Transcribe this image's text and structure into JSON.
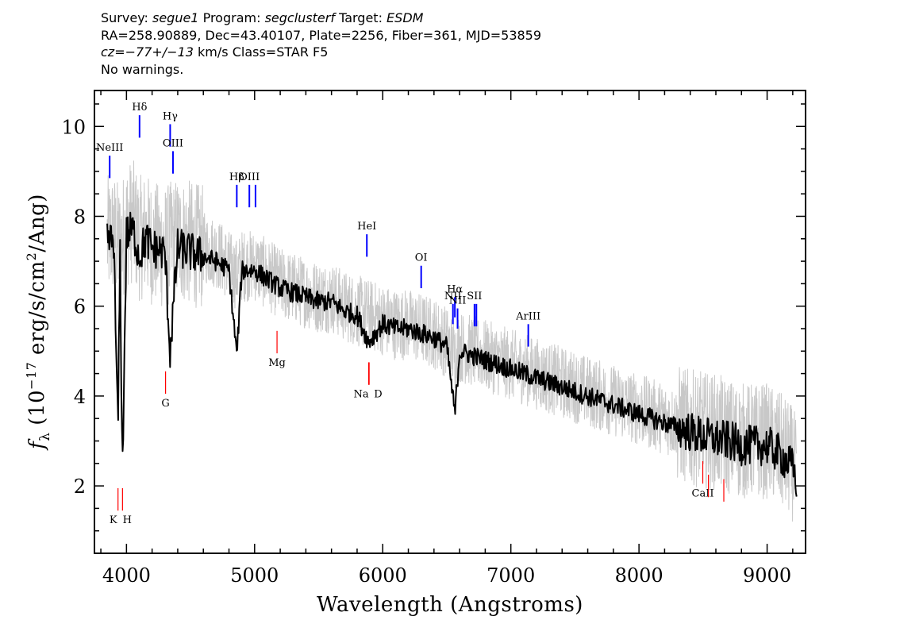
{
  "header": {
    "survey_label": "Survey:",
    "survey": "segue1",
    "program_label": "Program:",
    "program": "segclusterf",
    "target_label": "Target:",
    "target": "ESDM",
    "line2": "RA=258.90889, Dec=43.40107, Plate=2256, Fiber=361, MJD=53859",
    "cz_value": "cz=−77+/−13",
    "cz_rest": "km/s Class=STAR F5",
    "line4": "No warnings."
  },
  "chart_data": {
    "type": "line",
    "xlabel": "Wavelength (Angstroms)",
    "ylabel": "fλ (10⁻¹⁷ erg/s/cm²/Ang)",
    "xlim": [
      3750,
      9300
    ],
    "ylim": [
      0.5,
      10.8
    ],
    "x_ticks": [
      4000,
      5000,
      6000,
      7000,
      8000,
      9000
    ],
    "y_ticks": [
      2,
      4,
      6,
      8,
      10
    ],
    "series": [
      {
        "color": "#c8c8c8",
        "role": "noisy flux",
        "x": [
          3850,
          3900,
          3950,
          4000,
          4050,
          4100,
          4150,
          4200,
          4300,
          4400,
          4500,
          4600,
          4700,
          4800,
          4861,
          4900,
          5000,
          5100,
          5200,
          5300,
          5400,
          5500,
          5600,
          5700,
          5800,
          5900,
          6000,
          6100,
          6200,
          6300,
          6400,
          6500,
          6563,
          6600,
          6700,
          6800,
          6900,
          7000,
          7100,
          7200,
          7300,
          7400,
          7500,
          7600,
          7700,
          7800,
          7900,
          8000,
          8100,
          8200,
          8300,
          8400,
          8500,
          8600,
          8700,
          8800,
          8900,
          9000,
          9100,
          9200,
          9230
        ],
        "y": [
          7.5,
          7.6,
          7.3,
          7.8,
          7.9,
          7.5,
          7.6,
          7.4,
          7.3,
          7.5,
          7.4,
          7.3,
          7.2,
          6.9,
          6.7,
          6.9,
          6.9,
          6.7,
          6.5,
          6.4,
          6.3,
          6.2,
          6.2,
          6.0,
          5.9,
          5.8,
          5.7,
          5.6,
          5.6,
          5.5,
          5.4,
          5.2,
          4.9,
          5.1,
          5.0,
          4.9,
          4.8,
          4.7,
          4.6,
          4.5,
          4.4,
          4.3,
          4.2,
          4.1,
          4.0,
          3.9,
          3.8,
          3.7,
          3.6,
          3.5,
          3.4,
          3.3,
          3.25,
          3.2,
          3.1,
          3.0,
          3.0,
          3.0,
          2.8,
          2.5,
          2.2
        ]
      },
      {
        "color": "#000000",
        "role": "smoothed flux",
        "x": [
          3850,
          3900,
          3933,
          3950,
          3968,
          4000,
          4050,
          4101,
          4150,
          4200,
          4300,
          4340,
          4400,
          4500,
          4600,
          4700,
          4800,
          4861,
          4900,
          5000,
          5100,
          5200,
          5300,
          5400,
          5500,
          5600,
          5700,
          5800,
          5890,
          6000,
          6100,
          6200,
          6300,
          6400,
          6500,
          6563,
          6600,
          6700,
          6800,
          6900,
          7000,
          7100,
          7200,
          7300,
          7400,
          7500,
          7600,
          7700,
          7800,
          7900,
          8000,
          8100,
          8200,
          8300,
          8400,
          8500,
          8600,
          8700,
          8800,
          8900,
          9000,
          9100,
          9200,
          9230
        ],
        "y": [
          7.4,
          7.5,
          3.2,
          7.2,
          2.2,
          7.6,
          7.7,
          7.1,
          7.5,
          7.3,
          7.2,
          5.0,
          7.3,
          7.2,
          7.1,
          7.0,
          6.8,
          4.9,
          6.8,
          6.8,
          6.6,
          6.4,
          6.3,
          6.2,
          6.1,
          6.1,
          5.9,
          5.8,
          5.2,
          5.6,
          5.5,
          5.5,
          5.4,
          5.3,
          5.1,
          3.6,
          5.0,
          4.9,
          4.8,
          4.7,
          4.6,
          4.5,
          4.4,
          4.3,
          4.2,
          4.1,
          4.0,
          3.9,
          3.8,
          3.7,
          3.6,
          3.5,
          3.4,
          3.3,
          3.2,
          3.1,
          3.05,
          3.0,
          2.9,
          2.9,
          2.9,
          2.7,
          2.4,
          2.1
        ]
      }
    ],
    "emission_lines": [
      {
        "label": "NeIII",
        "x": 3869,
        "y_top": 9.35,
        "y_bottom": 8.85
      },
      {
        "label": "Hδ",
        "x": 4102,
        "y_top": 10.25,
        "y_bottom": 9.75
      },
      {
        "label": "Hγ",
        "x": 4341,
        "y_top": 10.05,
        "y_bottom": 9.55
      },
      {
        "label": "OIII",
        "x": 4363,
        "y_top": 9.45,
        "y_bottom": 8.95
      },
      {
        "label": "Hβ",
        "x": 4861,
        "y_top": 8.7,
        "y_bottom": 8.2
      },
      {
        "label": "OIII",
        "x": 4959,
        "y_top": 8.7,
        "y_bottom": 8.2
      },
      {
        "label": "",
        "x": 5007,
        "y_top": 8.7,
        "y_bottom": 8.2
      },
      {
        "label": "HeI",
        "x": 5876,
        "y_top": 7.6,
        "y_bottom": 7.1
      },
      {
        "label": "OI",
        "x": 6300,
        "y_top": 6.9,
        "y_bottom": 6.4
      },
      {
        "label": "NII",
        "x": 6548,
        "y_top": 6.05,
        "y_bottom": 5.6
      },
      {
        "label": "Hα",
        "x": 6563,
        "y_top": 6.2,
        "y_bottom": 5.75
      },
      {
        "label": "NII",
        "x": 6584,
        "y_top": 5.95,
        "y_bottom": 5.5
      },
      {
        "label": "SII",
        "x": 6716,
        "y_top": 6.05,
        "y_bottom": 5.55
      },
      {
        "label": "",
        "x": 6731,
        "y_top": 6.05,
        "y_bottom": 5.55
      },
      {
        "label": "ArIII",
        "x": 7136,
        "y_top": 5.6,
        "y_bottom": 5.1
      }
    ],
    "absorption_lines": [
      {
        "label": "K",
        "x": 3934,
        "y_top": 1.95,
        "y_bottom": 1.45
      },
      {
        "label": "H",
        "x": 3969,
        "y_top": 1.95,
        "y_bottom": 1.45
      },
      {
        "label": "G",
        "x": 4305,
        "y_top": 4.55,
        "y_bottom": 4.05
      },
      {
        "label": "Mg",
        "x": 5175,
        "y_top": 5.45,
        "y_bottom": 4.95
      },
      {
        "label": "Na",
        "x": 5894,
        "y_top": 4.75,
        "y_bottom": 4.25
      },
      {
        "label": "D",
        "x": 5890,
        "y_top": 4.75,
        "y_bottom": 4.25
      },
      {
        "label": "CaII",
        "x": 8498,
        "y_top": 2.55,
        "y_bottom": 2.05
      },
      {
        "label": "",
        "x": 8542,
        "y_top": 2.25,
        "y_bottom": 1.75
      },
      {
        "label": "",
        "x": 8662,
        "y_top": 2.15,
        "y_bottom": 1.65
      }
    ],
    "emission_color": "#0000ff",
    "absorption_color": "#ff0000",
    "grid": false,
    "legend": "none"
  }
}
